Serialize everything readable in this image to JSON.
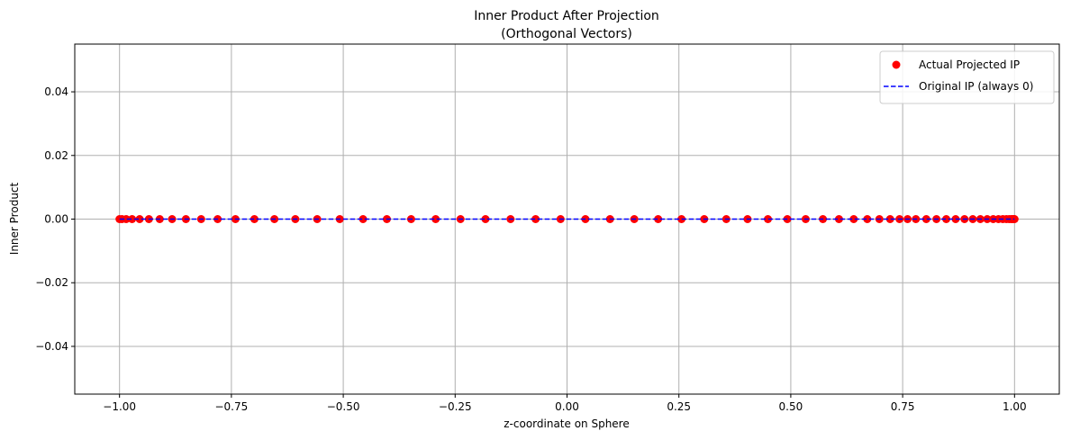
{
  "chart_data": {
    "type": "scatter",
    "title": "Inner Product After Projection",
    "subtitle": "(Orthogonal Vectors)",
    "xlabel": "z-coordinate on Sphere",
    "ylabel": "Inner Product",
    "xlim": [
      -1.1,
      1.1
    ],
    "ylim": [
      -0.055,
      0.055
    ],
    "x_ticks": [
      -1.0,
      -0.75,
      -0.5,
      -0.25,
      0.0,
      0.25,
      0.5,
      0.75,
      1.0
    ],
    "x_tick_labels": [
      "−1.00",
      "−0.75",
      "−0.50",
      "−0.25",
      "0.00",
      "0.25",
      "0.50",
      "0.75",
      "1.00"
    ],
    "y_ticks": [
      -0.04,
      -0.02,
      0.0,
      0.02,
      0.04
    ],
    "y_tick_labels": [
      "−0.04",
      "−0.02",
      "0.00",
      "0.02",
      "0.04"
    ],
    "grid": true,
    "legend_position": "top-right",
    "series": [
      {
        "name": "Actual Projected IP",
        "kind": "scatter",
        "color": "#ff0000",
        "x": [
          -1.0,
          -0.9945,
          -0.9851,
          -0.9719,
          -0.955,
          -0.9343,
          -0.9101,
          -0.8825,
          -0.8516,
          -0.8176,
          -0.7807,
          -0.7409,
          -0.6986,
          -0.6539,
          -0.6071,
          -0.5583,
          -0.5078,
          -0.4558,
          -0.4026,
          -0.3484,
          -0.2935,
          -0.238,
          -0.1822,
          -0.1262,
          -0.0702,
          -0.0144,
          0.0411,
          0.0961,
          0.1503,
          0.2036,
          0.2558,
          0.3066,
          0.3559,
          0.4034,
          0.4489,
          0.4923,
          0.5333,
          0.5718,
          0.6077,
          0.6407,
          0.6709,
          0.698,
          0.722,
          0.743,
          0.761,
          0.7795,
          0.8028,
          0.8255,
          0.8474,
          0.8684,
          0.8882,
          0.9067,
          0.9236,
          0.9389,
          0.9524,
          0.9641,
          0.9738,
          0.9817,
          0.9878,
          0.9924,
          0.9956,
          0.9977,
          0.999,
          1.0
        ],
        "y": [
          0,
          0,
          0,
          0,
          0,
          0,
          0,
          0,
          0,
          0,
          0,
          0,
          0,
          0,
          0,
          0,
          0,
          0,
          0,
          0,
          0,
          0,
          0,
          0,
          0,
          0,
          0,
          0,
          0,
          0,
          0,
          0,
          0,
          0,
          0,
          0,
          0,
          0,
          0,
          0,
          0,
          0,
          0,
          0,
          0,
          0,
          0,
          0,
          0,
          0,
          0,
          0,
          0,
          0,
          0,
          0,
          0,
          0,
          0,
          0,
          0,
          0,
          0,
          0
        ]
      },
      {
        "name": "Original IP (always 0)",
        "kind": "dashed-line",
        "color": "#0000ff",
        "x": [
          -1.0,
          1.0
        ],
        "y": [
          0,
          0
        ]
      }
    ]
  }
}
